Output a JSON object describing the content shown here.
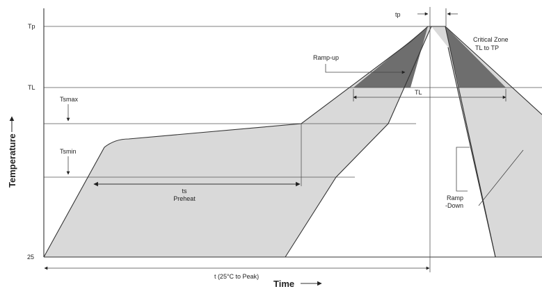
{
  "labels": {
    "tp": "Tp",
    "tl": "TL",
    "tsmax": "Tsmax",
    "tsmin": "Tsmin",
    "t25": "25",
    "temperature_axis": "Temperature",
    "time_axis": "Time",
    "tp_duration": "tp",
    "ramp_up": "Ramp-up",
    "critical_zone_line1": "Critical Zone",
    "critical_zone_line2": "TL to TP",
    "tl_duration": "TL",
    "ts_line1": "ts",
    "ts_line2": "Preheat",
    "ramp_down_line1": "Ramp",
    "ramp_down_line2": "-Down",
    "total_time": "t (25°C to Peak)"
  }
}
